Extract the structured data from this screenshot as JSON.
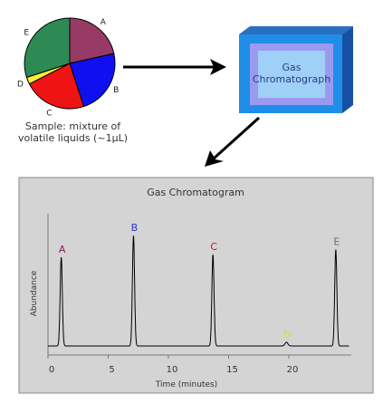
{
  "sample": {
    "caption_line1": "Sample: mixture of",
    "caption_line2": "volatile liquids (~1µL)",
    "components": [
      {
        "label": "A",
        "color": "#983a66",
        "fraction": 0.215
      },
      {
        "label": "B",
        "color": "#0f0ff0",
        "fraction": 0.235
      },
      {
        "label": "C",
        "color": "#ee1414",
        "fraction": 0.225
      },
      {
        "label": "D",
        "color": "#ffee33",
        "fraction": 0.025
      },
      {
        "label": "E",
        "color": "#2d8a55",
        "fraction": 0.3
      }
    ]
  },
  "instrument": {
    "label_line1": "Gas",
    "label_line2": "Chromatograph",
    "colors": {
      "front": "#1f8ee8",
      "top": "#2a6ec0",
      "side": "#1650a4",
      "window": "#9a9af0",
      "window_inner": "#9fd0f8"
    }
  },
  "chromatogram": {
    "title": "Gas Chromatogram",
    "ylabel": "Abundance",
    "xlabel": "Time (minutes)",
    "ticks": [
      "0",
      "5",
      "10",
      "15",
      "20"
    ],
    "peaks": [
      {
        "label": "A",
        "color": "#8b1a5a",
        "time": 1.1,
        "height": 0.7
      },
      {
        "label": "B",
        "color": "#3333bb",
        "time": 7.1,
        "height": 0.87
      },
      {
        "label": "C",
        "color": "#dd1111",
        "time": 13.7,
        "height": 0.72
      },
      {
        "label": "D",
        "color": "#dddd33",
        "time": 19.8,
        "height": 0.03
      },
      {
        "label": "E",
        "color": "#557777",
        "time": 23.9,
        "height": 0.76
      }
    ],
    "colors": {
      "background": "#d4d4d4",
      "frame": "#8a8a8a",
      "trace": "#000000"
    }
  }
}
